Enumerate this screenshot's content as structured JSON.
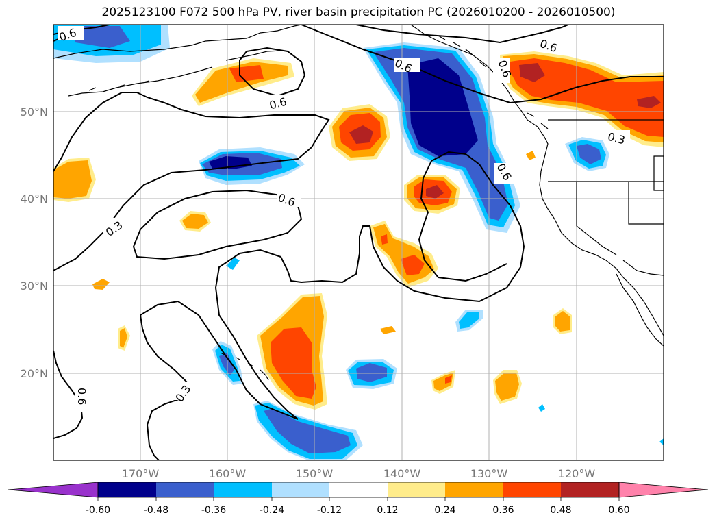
{
  "title": "2025123100 F072 500 hPa PV, river basin precipitation PC (2026010200 - 2026010500)",
  "map": {
    "lon_ticks": [
      {
        "lon": -170,
        "label": "170°W"
      },
      {
        "lon": -160,
        "label": "160°W"
      },
      {
        "lon": -150,
        "label": "150°W"
      },
      {
        "lon": -140,
        "label": "140°W"
      },
      {
        "lon": -130,
        "label": "130°W"
      },
      {
        "lon": -120,
        "label": "120°W"
      }
    ],
    "lat_ticks": [
      {
        "lat": 50,
        "label": "50°N"
      },
      {
        "lat": 40,
        "label": "40°N"
      },
      {
        "lat": 30,
        "label": "30°N"
      },
      {
        "lat": 20,
        "label": "20°N"
      }
    ],
    "lon_range": [
      -180,
      -110
    ],
    "lat_range": [
      10,
      60
    ],
    "grid": true,
    "contour_labels": [
      "0.6",
      "0.6",
      "0.6",
      "0.6",
      "0.6",
      "0.6",
      "0.3",
      "0.3",
      "0.6",
      "0.3",
      "0.6"
    ]
  },
  "colorbar": {
    "ticks": [
      "-0.60",
      "-0.48",
      "-0.36",
      "-0.24",
      "-0.12",
      "0.12",
      "0.24",
      "0.36",
      "0.48",
      "0.60"
    ],
    "colors": [
      "#9932cc",
      "#00008b",
      "#3a5fcd",
      "#00bfff",
      "#b0e0ff",
      "#ffffff",
      "#ffec8b",
      "#ffa500",
      "#ff4500",
      "#b22222",
      "#ff82ab"
    ]
  }
}
